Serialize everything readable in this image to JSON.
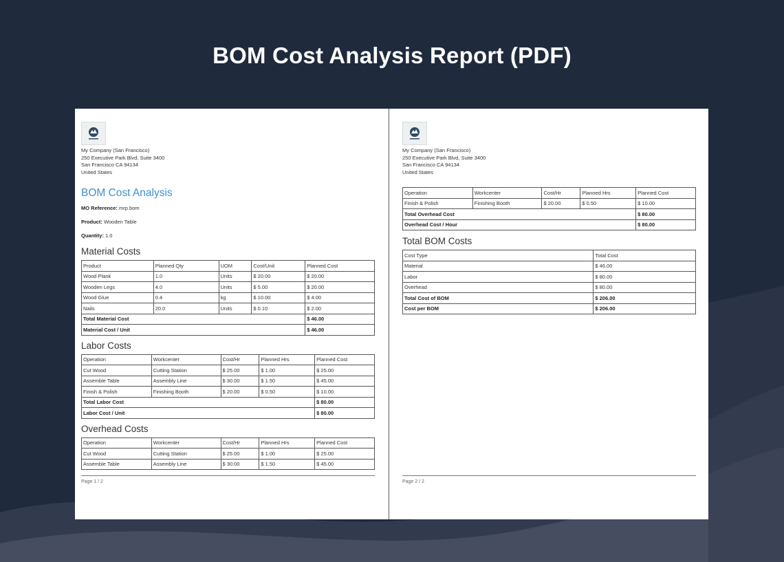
{
  "banner": {
    "title": "BOM Cost Analysis Report (PDF)"
  },
  "colors": {
    "background": "#1f2a3d",
    "accent": "#3d8fce"
  },
  "page1": {
    "logo_icon": "company-logo-icon",
    "company": {
      "name": "My Company (San Francisco)",
      "street": "250 Executive Park Blvd, Suite 3400",
      "city": "San Francisco CA 94134",
      "country": "United States"
    },
    "title": "BOM Cost Analysis",
    "mo_reference": {
      "label": "MO Reference:",
      "value": "mrp.bom"
    },
    "product": {
      "label": "Product:",
      "value": "Wooden Table"
    },
    "quantity": {
      "label": "Quantity:",
      "value": "1.0"
    },
    "material": {
      "title": "Material Costs",
      "headers": [
        "Product",
        "Planned Qty",
        "UOM",
        "Cost/Unit",
        "Planned Cost"
      ],
      "rows": [
        [
          "Wood Plank",
          "1.0",
          "Units",
          "$ 20.00",
          "$ 20.00"
        ],
        [
          "Wooden Legs",
          "4.0",
          "Units",
          "$ 5.00",
          "$ 20.00"
        ],
        [
          "Wood Glue",
          "0.4",
          "kg",
          "$ 10.00",
          "$ 4.00"
        ],
        [
          "Nails",
          "20.0",
          "Units",
          "$ 0.10",
          "$ 2.00"
        ]
      ],
      "totals": [
        {
          "label": "Total Material Cost",
          "value": "$ 46.00"
        },
        {
          "label": "Material Cost / Unit",
          "value": "$ 46.00"
        }
      ]
    },
    "labor": {
      "title": "Labor Costs",
      "headers": [
        "Operation",
        "Workcenter",
        "Cost/Hr",
        "Planned Hrs",
        "Planned Cost"
      ],
      "rows": [
        [
          "Cut Wood",
          "Cutting Station",
          "$ 25.00",
          "$ 1.00",
          "$ 25.00"
        ],
        [
          "Assemble Table",
          "Assembly Line",
          "$ 30.00",
          "$ 1.50",
          "$ 45.00"
        ],
        [
          "Finish & Polish",
          "Finishing Booth",
          "$ 20.00",
          "$ 0.50",
          "$ 10.00"
        ]
      ],
      "totals": [
        {
          "label": "Total Labor Cost",
          "value": "$ 80.00"
        },
        {
          "label": "Labor Cost / Unit",
          "value": "$ 80.00"
        }
      ]
    },
    "overhead": {
      "title": "Overhead Costs",
      "headers": [
        "Operation",
        "Workcenter",
        "Cost/Hr",
        "Planned Hrs",
        "Planned Cost"
      ],
      "rows": [
        [
          "Cut Wood",
          "Cutting Station",
          "$ 25.00",
          "$ 1.00",
          "$ 25.00"
        ],
        [
          "Assemble Table",
          "Assembly Line",
          "$ 30.00",
          "$ 1.50",
          "$ 45.00"
        ]
      ]
    },
    "footer": "Page 1 / 2"
  },
  "page2": {
    "logo_icon": "company-logo-icon",
    "company": {
      "name": "My Company (San Francisco)",
      "street": "250 Executive Park Blvd, Suite 3400",
      "city": "San Francisco CA 94134",
      "country": "United States"
    },
    "overhead_cont": {
      "headers": [
        "Operation",
        "Workcenter",
        "Cost/Hr",
        "Planned Hrs",
        "Planned Cost"
      ],
      "rows": [
        [
          "Finish & Polish",
          "Finishing Booth",
          "$ 20.00",
          "$ 0.50",
          "$ 10.00"
        ]
      ],
      "totals": [
        {
          "label": "Total Overhead Cost",
          "value": "$ 80.00"
        },
        {
          "label": "Overhead Cost / Hour",
          "value": "$ 80.00"
        }
      ]
    },
    "total_bom": {
      "title": "Total BOM Costs",
      "headers": [
        "Cost Type",
        "Total Cost"
      ],
      "rows": [
        [
          "Material",
          "$ 46.00"
        ],
        [
          "Labor",
          "$ 80.00"
        ],
        [
          "Overhead",
          "$ 80.00"
        ]
      ],
      "totals": [
        {
          "label": "Total Cost of BOM",
          "value": "$ 206.00"
        },
        {
          "label": "Cost per BOM",
          "value": "$ 206.00"
        }
      ]
    },
    "footer": "Page 2 / 2"
  }
}
